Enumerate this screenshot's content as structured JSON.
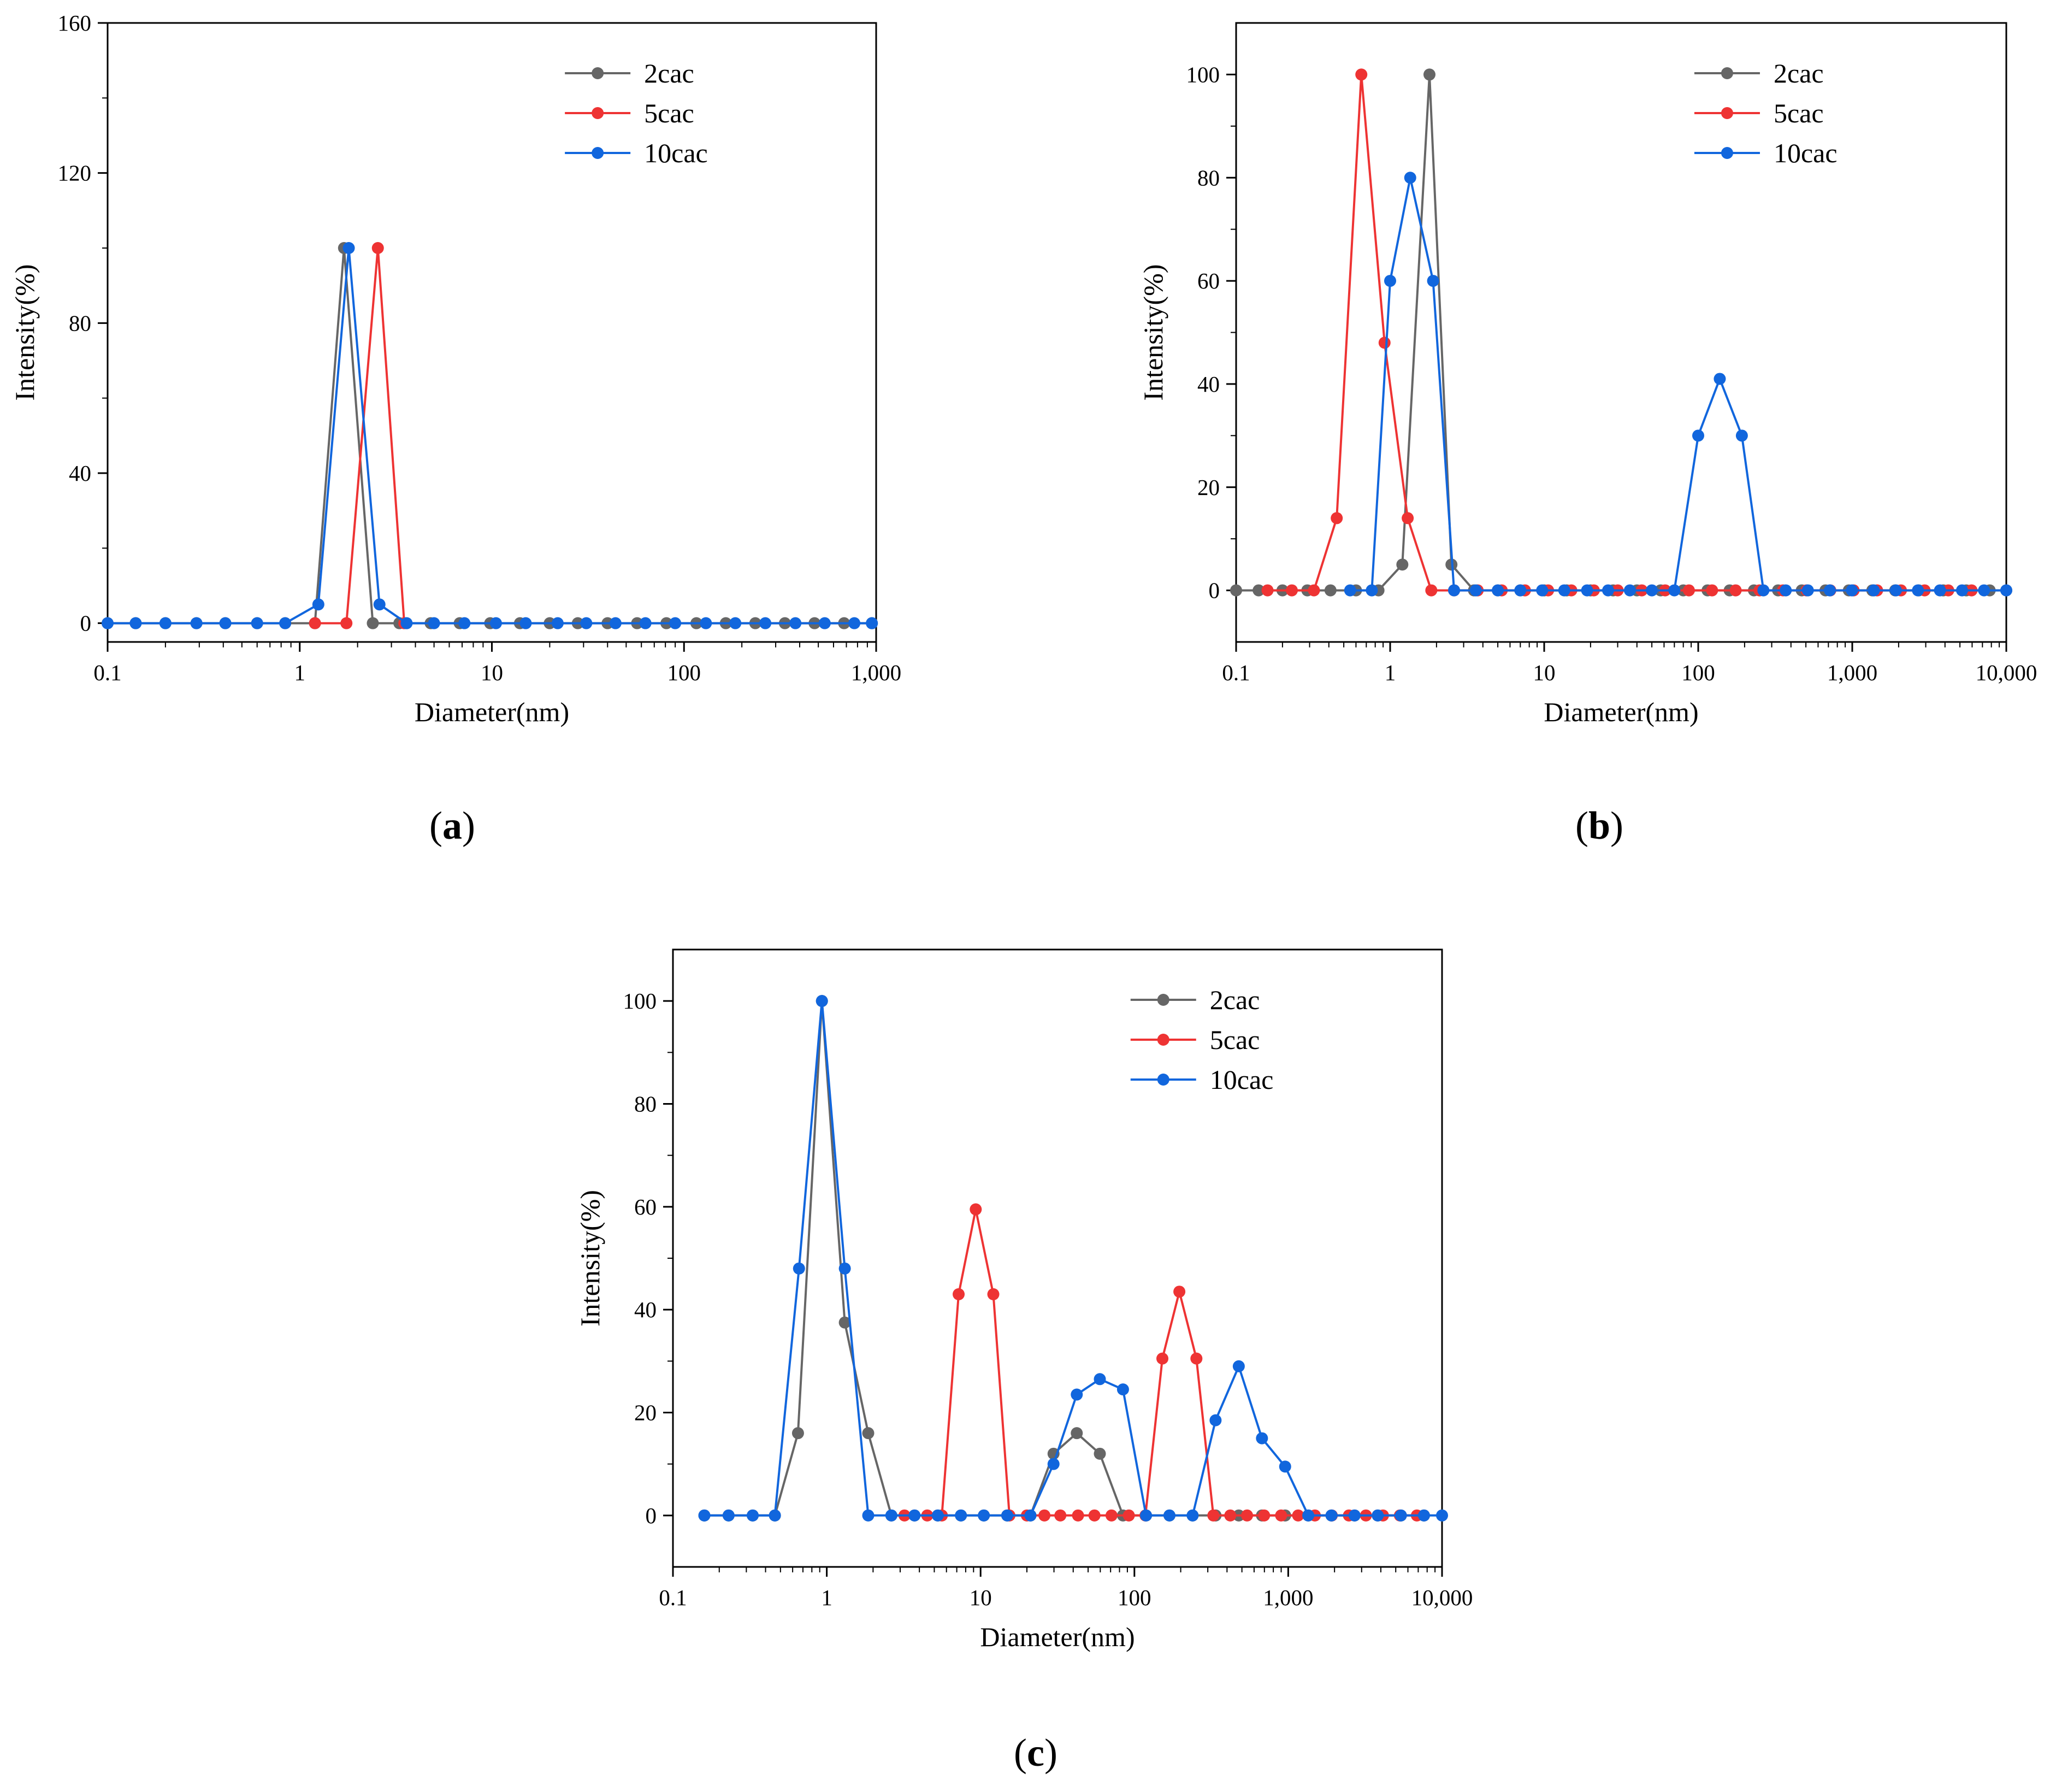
{
  "chart_data": [
    {
      "panel": "(a)",
      "panel_letter": "a",
      "type": "line",
      "xscale": "log",
      "xlim": [
        0.1,
        1000
      ],
      "ylim": [
        -5,
        160
      ],
      "xlabel": "Diameter(nm)",
      "ylabel": "Intensity(%)",
      "xticks": [
        0.1,
        1,
        10,
        100,
        1000
      ],
      "xtick_labels": [
        "0.1",
        "1",
        "10",
        "100",
        "1,000"
      ],
      "yticks": [
        0,
        40,
        80,
        120,
        160
      ],
      "ytick_labels": [
        "0",
        "40",
        "80",
        "120",
        "160"
      ],
      "legend_position": "top-right",
      "series": [
        {
          "name": "2cac",
          "color": "#666666",
          "points": [
            [
              0.1,
              0
            ],
            [
              0.14,
              0
            ],
            [
              0.2,
              0
            ],
            [
              0.29,
              0
            ],
            [
              0.41,
              0
            ],
            [
              0.6,
              0
            ],
            [
              0.84,
              0
            ],
            [
              1.2,
              0
            ],
            [
              1.7,
              100
            ],
            [
              2.4,
              0
            ],
            [
              3.3,
              0
            ],
            [
              4.8,
              0
            ],
            [
              6.8,
              0
            ],
            [
              9.8,
              0
            ],
            [
              14,
              0
            ],
            [
              20,
              0
            ],
            [
              28,
              0
            ],
            [
              40,
              0
            ],
            [
              57,
              0
            ],
            [
              81,
              0
            ],
            [
              116,
              0
            ],
            [
              165,
              0
            ],
            [
              235,
              0
            ],
            [
              335,
              0
            ],
            [
              478,
              0
            ],
            [
              681,
              0
            ],
            [
              950,
              0
            ]
          ]
        },
        {
          "name": "5cac",
          "color": "#ee3333",
          "points": [
            [
              1.2,
              0
            ],
            [
              1.75,
              0
            ],
            [
              2.55,
              100
            ],
            [
              3.5,
              0
            ]
          ]
        },
        {
          "name": "10cac",
          "color": "#1166dd",
          "points": [
            [
              0.1,
              0
            ],
            [
              0.14,
              0
            ],
            [
              0.2,
              0
            ],
            [
              0.29,
              0
            ],
            [
              0.41,
              0
            ],
            [
              0.6,
              0
            ],
            [
              0.84,
              0
            ],
            [
              1.25,
              5
            ],
            [
              1.8,
              100
            ],
            [
              2.6,
              5
            ],
            [
              3.6,
              0
            ],
            [
              5,
              0
            ],
            [
              7.2,
              0
            ],
            [
              10.5,
              0
            ],
            [
              15,
              0
            ],
            [
              22,
              0
            ],
            [
              31,
              0
            ],
            [
              44,
              0
            ],
            [
              63,
              0
            ],
            [
              90,
              0
            ],
            [
              130,
              0
            ],
            [
              185,
              0
            ],
            [
              265,
              0
            ],
            [
              380,
              0
            ],
            [
              540,
              0
            ],
            [
              770,
              0
            ],
            [
              950,
              0
            ]
          ]
        }
      ]
    },
    {
      "panel": "(b)",
      "panel_letter": "b",
      "type": "line",
      "xscale": "log",
      "xlim": [
        0.1,
        10000
      ],
      "ylim": [
        -10,
        110
      ],
      "xlabel": "Diameter(nm)",
      "ylabel": "Intensity(%)",
      "xticks": [
        0.1,
        1,
        10,
        100,
        1000,
        10000
      ],
      "xtick_labels": [
        "0.1",
        "1",
        "10",
        "100",
        "1,000",
        "10,000"
      ],
      "yticks": [
        0,
        20,
        40,
        60,
        80,
        100
      ],
      "ytick_labels": [
        "0",
        "20",
        "40",
        "60",
        "80",
        "100"
      ],
      "legend_position": "top-right",
      "series": [
        {
          "name": "2cac",
          "color": "#666666",
          "points": [
            [
              0.1,
              0
            ],
            [
              0.14,
              0
            ],
            [
              0.2,
              0
            ],
            [
              0.29,
              0
            ],
            [
              0.41,
              0
            ],
            [
              0.6,
              0
            ],
            [
              0.84,
              0
            ],
            [
              1.2,
              5
            ],
            [
              1.8,
              100
            ],
            [
              2.5,
              5
            ],
            [
              3.5,
              0
            ],
            [
              5,
              0
            ],
            [
              7,
              0
            ],
            [
              10,
              0
            ],
            [
              14,
              0
            ],
            [
              20,
              0
            ],
            [
              28,
              0
            ],
            [
              40,
              0
            ],
            [
              57,
              0
            ],
            [
              80,
              0
            ],
            [
              115,
              0
            ],
            [
              160,
              0
            ],
            [
              230,
              0
            ],
            [
              330,
              0
            ],
            [
              470,
              0
            ],
            [
              670,
              0
            ],
            [
              950,
              0
            ],
            [
              1350,
              0
            ],
            [
              1900,
              0
            ],
            [
              2700,
              0
            ],
            [
              3900,
              0
            ],
            [
              5500,
              0
            ],
            [
              7800,
              0
            ],
            [
              10000,
              0
            ]
          ]
        },
        {
          "name": "5cac",
          "color": "#ee3333",
          "points": [
            [
              0.16,
              0
            ],
            [
              0.23,
              0
            ],
            [
              0.32,
              0
            ],
            [
              0.45,
              14
            ],
            [
              0.65,
              100
            ],
            [
              0.92,
              48
            ],
            [
              1.3,
              14
            ],
            [
              1.85,
              0
            ],
            [
              2.6,
              0
            ],
            [
              3.7,
              0
            ],
            [
              5.3,
              0
            ],
            [
              7.5,
              0
            ],
            [
              10.6,
              0
            ],
            [
              15,
              0
            ],
            [
              21,
              0
            ],
            [
              30,
              0
            ],
            [
              43,
              0
            ],
            [
              61,
              0
            ],
            [
              87,
              0
            ],
            [
              123,
              0
            ],
            [
              175,
              0
            ],
            [
              250,
              0
            ],
            [
              355,
              0
            ],
            [
              505,
              0
            ],
            [
              720,
              0
            ],
            [
              1020,
              0
            ],
            [
              1450,
              0
            ],
            [
              2070,
              0
            ],
            [
              2950,
              0
            ],
            [
              4200,
              0
            ],
            [
              5950,
              0
            ]
          ]
        },
        {
          "name": "10cac",
          "color": "#1166dd",
          "points": [
            [
              0.55,
              0
            ],
            [
              0.76,
              0
            ],
            [
              1,
              60
            ],
            [
              1.35,
              80
            ],
            [
              1.9,
              60
            ],
            [
              2.6,
              0
            ],
            [
              3.6,
              0
            ],
            [
              5,
              0
            ],
            [
              7,
              0
            ],
            [
              9.7,
              0
            ],
            [
              13.5,
              0
            ],
            [
              19,
              0
            ],
            [
              26,
              0
            ],
            [
              36,
              0
            ],
            [
              50,
              0
            ],
            [
              70,
              0
            ],
            [
              100,
              30
            ],
            [
              138,
              41
            ],
            [
              192,
              30
            ],
            [
              265,
              0
            ],
            [
              370,
              0
            ],
            [
              515,
              0
            ],
            [
              715,
              0
            ],
            [
              995,
              0
            ],
            [
              1380,
              0
            ],
            [
              1920,
              0
            ],
            [
              2670,
              0
            ],
            [
              3710,
              0
            ],
            [
              5160,
              0
            ],
            [
              7170,
              0
            ],
            [
              10000,
              0
            ]
          ]
        }
      ]
    },
    {
      "panel": "(c)",
      "panel_letter": "c",
      "type": "line",
      "xscale": "log",
      "xlim": [
        0.1,
        10000
      ],
      "ylim": [
        -10,
        110
      ],
      "xlabel": "Diameter(nm)",
      "ylabel": "Intensity(%)",
      "xticks": [
        0.1,
        1,
        10,
        100,
        1000,
        10000
      ],
      "xtick_labels": [
        "0.1",
        "1",
        "10",
        "100",
        "1,000",
        "10,000"
      ],
      "yticks": [
        0,
        20,
        40,
        60,
        80,
        100
      ],
      "ytick_labels": [
        "0",
        "20",
        "40",
        "60",
        "80",
        "100"
      ],
      "legend_position": "top-right",
      "series": [
        {
          "name": "2cac",
          "color": "#666666",
          "points": [
            [
              0.16,
              0
            ],
            [
              0.23,
              0
            ],
            [
              0.33,
              0
            ],
            [
              0.46,
              0
            ],
            [
              0.65,
              16
            ],
            [
              0.93,
              100
            ],
            [
              1.31,
              37.5
            ],
            [
              1.86,
              16
            ],
            [
              2.63,
              0
            ],
            [
              3.72,
              0
            ],
            [
              5.27,
              0
            ],
            [
              7.45,
              0
            ],
            [
              10.5,
              0
            ],
            [
              14.9,
              0
            ],
            [
              21.1,
              0
            ],
            [
              29.8,
              12
            ],
            [
              42.2,
              16
            ],
            [
              59.6,
              12
            ],
            [
              84.3,
              0
            ],
            [
              119,
              0
            ],
            [
              169,
              0
            ],
            [
              239,
              0
            ],
            [
              337,
              0
            ],
            [
              477,
              0
            ],
            [
              675,
              0
            ],
            [
              955,
              0
            ],
            [
              1350,
              0
            ],
            [
              1910,
              0
            ],
            [
              2700,
              0
            ],
            [
              3820,
              0
            ],
            [
              5400,
              0
            ],
            [
              7630,
              0
            ]
          ]
        },
        {
          "name": "5cac",
          "color": "#ee3333",
          "points": [
            [
              3.2,
              0
            ],
            [
              4.5,
              0
            ],
            [
              5.6,
              0
            ],
            [
              7.2,
              43
            ],
            [
              9.3,
              59.5
            ],
            [
              12.1,
              43
            ],
            [
              15.4,
              0
            ],
            [
              20,
              0
            ],
            [
              26,
              0
            ],
            [
              33,
              0
            ],
            [
              43,
              0
            ],
            [
              55,
              0
            ],
            [
              71,
              0
            ],
            [
              92,
              0
            ],
            [
              118,
              0
            ],
            [
              152,
              30.5
            ],
            [
              196,
              43.5
            ],
            [
              253,
              30.5
            ],
            [
              326,
              0
            ],
            [
              420,
              0
            ],
            [
              540,
              0
            ],
            [
              697,
              0
            ],
            [
              899,
              0
            ],
            [
              1160,
              0
            ],
            [
              1490,
              0
            ],
            [
              1920,
              0
            ],
            [
              2480,
              0
            ],
            [
              3200,
              0
            ],
            [
              4130,
              0
            ],
            [
              5320,
              0
            ],
            [
              6860,
              0
            ]
          ]
        },
        {
          "name": "10cac",
          "color": "#1166dd",
          "points": [
            [
              0.16,
              0
            ],
            [
              0.23,
              0
            ],
            [
              0.33,
              0
            ],
            [
              0.46,
              0
            ],
            [
              0.66,
              48
            ],
            [
              0.93,
              100
            ],
            [
              1.31,
              48
            ],
            [
              1.86,
              0
            ],
            [
              2.63,
              0
            ],
            [
              3.72,
              0
            ],
            [
              5.27,
              0
            ],
            [
              7.45,
              0
            ],
            [
              10.5,
              0
            ],
            [
              14.9,
              0
            ],
            [
              21.1,
              0
            ],
            [
              29.8,
              10
            ],
            [
              42.2,
              23.5
            ],
            [
              59.6,
              26.5
            ],
            [
              84.3,
              24.5
            ],
            [
              119,
              0
            ],
            [
              169,
              0
            ],
            [
              239,
              0
            ],
            [
              337,
              18.5
            ],
            [
              477,
              29
            ],
            [
              675,
              15
            ],
            [
              955,
              9.5
            ],
            [
              1350,
              0
            ],
            [
              1910,
              0
            ],
            [
              2700,
              0
            ],
            [
              3820,
              0
            ],
            [
              5400,
              0
            ],
            [
              7630,
              0
            ],
            [
              10000,
              0
            ]
          ]
        }
      ]
    }
  ]
}
